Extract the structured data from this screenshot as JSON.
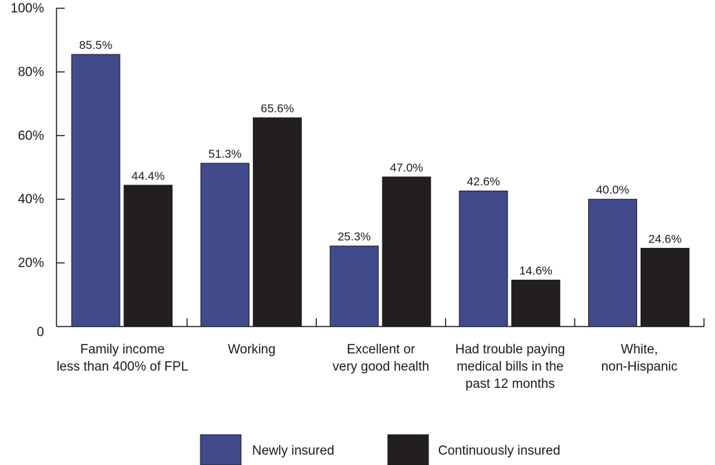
{
  "chart_data": {
    "type": "bar",
    "categories": [
      [
        "Family income",
        "less than 400% of FPL"
      ],
      [
        "Working"
      ],
      [
        "Excellent or",
        "very good health"
      ],
      [
        "Had trouble paying",
        "medical bills in the",
        "past 12 months"
      ],
      [
        "White,",
        "non-Hispanic"
      ]
    ],
    "series": [
      {
        "name": "Newly insured",
        "color": "#414a8a",
        "values": [
          85.5,
          51.3,
          25.3,
          42.6,
          40.0
        ],
        "labels": [
          "85.5%",
          "51.3%",
          "25.3%",
          "42.6%",
          "40.0%"
        ]
      },
      {
        "name": "Continuously insured",
        "color": "#231f20",
        "values": [
          44.4,
          65.6,
          47.0,
          14.6,
          24.6
        ],
        "labels": [
          "44.4%",
          "65.6%",
          "47.0%",
          "14.6%",
          "24.6%"
        ]
      }
    ],
    "ylim": [
      0,
      100
    ],
    "yticks": [
      0,
      20,
      40,
      60,
      80,
      100
    ],
    "ytick_labels": [
      "0",
      "20%",
      "40%",
      "60%",
      "80%",
      "100%"
    ],
    "title": "",
    "xlabel": "",
    "ylabel": "",
    "grid": false,
    "legend_position": "bottom"
  }
}
